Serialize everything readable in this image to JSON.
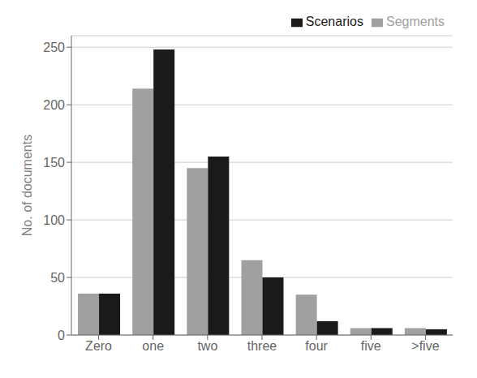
{
  "chart_data": {
    "type": "bar",
    "ylabel": "No. of documents",
    "categories": [
      "Zero",
      "one",
      "two",
      "three",
      "four",
      "five",
      ">five"
    ],
    "series": [
      {
        "name": "Segments",
        "color": "#a0a0a0",
        "values": [
          36,
          214,
          145,
          65,
          35,
          6,
          6
        ]
      },
      {
        "name": "Scenarios",
        "color": "#1a1a1a",
        "values": [
          36,
          248,
          155,
          50,
          12,
          6,
          5
        ]
      }
    ],
    "ylim": [
      0,
      260
    ],
    "yticks": [
      0,
      50,
      100,
      150,
      200,
      250
    ],
    "grid": true,
    "legend": "upper right"
  }
}
